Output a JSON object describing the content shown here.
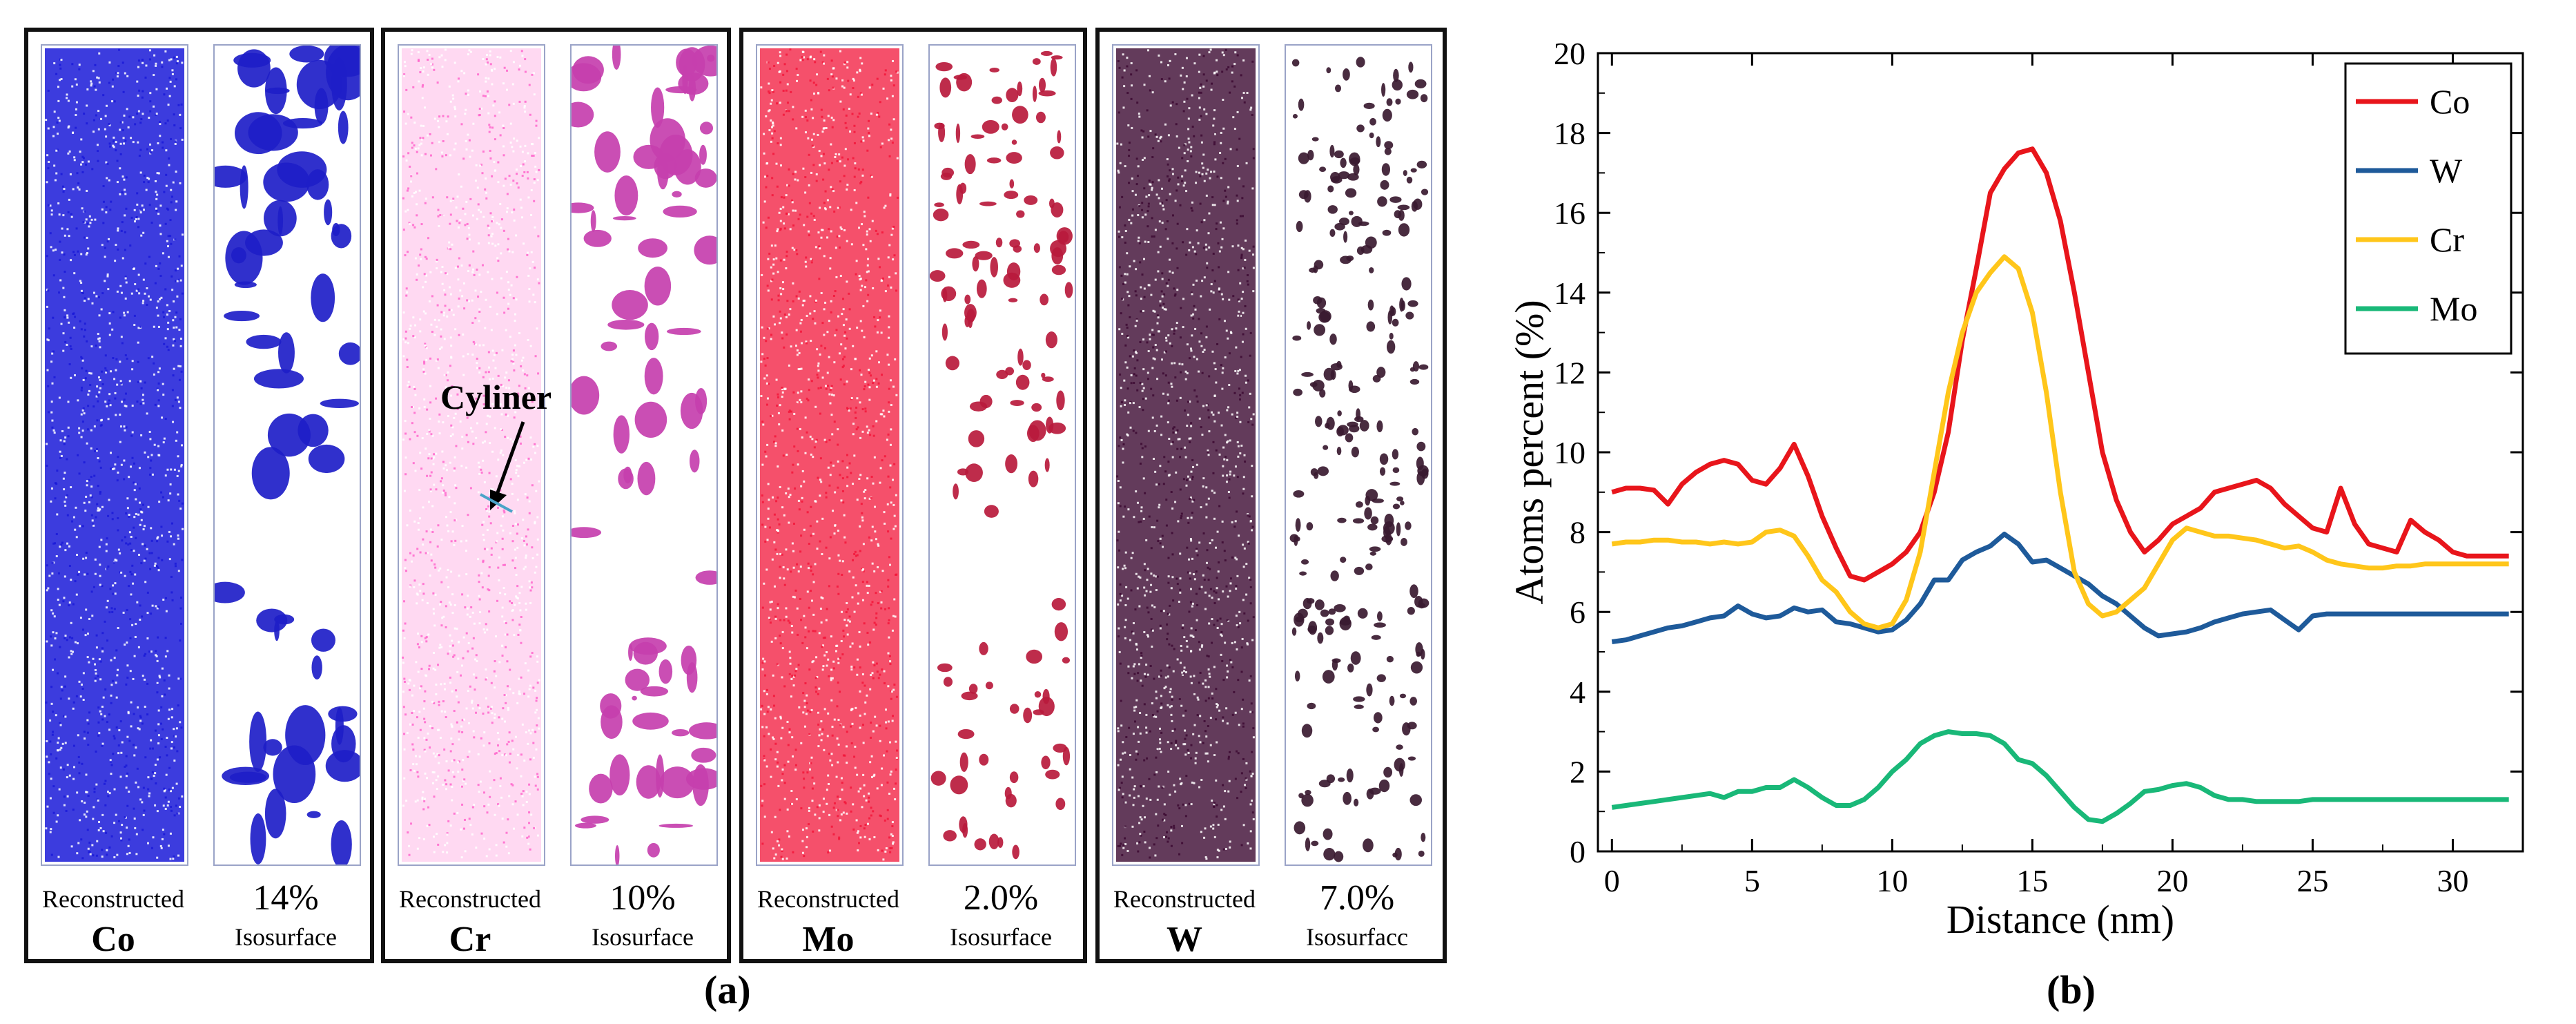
{
  "panel_a": {
    "label": "(a)",
    "panels": [
      {
        "element": "Co",
        "reconstructed_label": "Reconstructed",
        "iso_value": "14%",
        "iso_label": "Isosurface",
        "color": "#1a1ad8",
        "iso_color": "#1e1ec8"
      },
      {
        "element": "Cr",
        "reconstructed_label": "Reconstructed",
        "iso_value": "10%",
        "iso_label": "Isosurface",
        "color": "#ff66cc",
        "iso_color": "#c63fae"
      },
      {
        "element": "Mo",
        "reconstructed_label": "Reconstructed",
        "iso_value": "2.0%",
        "iso_label": "Isosurface",
        "color": "#f2163a",
        "iso_color": "#b81a3c"
      },
      {
        "element": "W",
        "reconstructed_label": "Reconstructed",
        "iso_value": "7.0%",
        "iso_label": "Isosurfacc",
        "color": "#3c0a32",
        "iso_color": "#3a1a30"
      }
    ],
    "annotation": "Cyliner"
  },
  "chart_data": {
    "type": "line",
    "label": "(b)",
    "xlabel": "Distance (nm)",
    "ylabel": "Atoms percent (%)",
    "xlim": [
      -0.5,
      32.5
    ],
    "ylim": [
      0,
      20
    ],
    "xticks": [
      0,
      5,
      10,
      15,
      20,
      25,
      30
    ],
    "yticks": [
      0,
      2,
      4,
      6,
      8,
      10,
      12,
      14,
      16,
      18,
      20
    ],
    "x": [
      0,
      0.5,
      1,
      1.5,
      2,
      2.5,
      3,
      3.5,
      4,
      4.5,
      5,
      5.5,
      6,
      6.5,
      7,
      7.5,
      8,
      8.5,
      9,
      9.5,
      10,
      10.5,
      11,
      11.5,
      12,
      12.5,
      13,
      13.5,
      14,
      14.5,
      15,
      15.5,
      16,
      16.5,
      17,
      17.5,
      18,
      18.5,
      19,
      19.5,
      20,
      20.5,
      21,
      21.5,
      22,
      22.5,
      23,
      23.5,
      24,
      24.5,
      25,
      25.5,
      26,
      26.5,
      27,
      27.5,
      28,
      28.5,
      29,
      29.5,
      30,
      30.5,
      31,
      31.5,
      32
    ],
    "legend": "top-right",
    "series": [
      {
        "name": "Co",
        "color": "#e8151b",
        "values": [
          9.0,
          9.1,
          9.1,
          9.05,
          8.7,
          9.2,
          9.5,
          9.7,
          9.8,
          9.7,
          9.3,
          9.2,
          9.6,
          10.2,
          9.4,
          8.4,
          7.6,
          6.9,
          6.8,
          7.0,
          7.2,
          7.5,
          8.0,
          9.0,
          10.5,
          12.8,
          14.6,
          16.5,
          17.1,
          17.5,
          17.6,
          17.0,
          15.8,
          14.0,
          12.0,
          10.0,
          8.8,
          8.0,
          7.5,
          7.8,
          8.2,
          8.4,
          8.6,
          9.0,
          9.1,
          9.2,
          9.3,
          9.1,
          8.7,
          8.4,
          8.1,
          8.0,
          9.1,
          8.2,
          7.7,
          7.6,
          7.5,
          8.3,
          8.0,
          7.8,
          7.5,
          7.4,
          7.4,
          7.4,
          7.4
        ]
      },
      {
        "name": "W",
        "color": "#1e5a9a",
        "values": [
          5.25,
          5.3,
          5.4,
          5.5,
          5.6,
          5.65,
          5.75,
          5.85,
          5.9,
          6.15,
          5.95,
          5.85,
          5.9,
          6.1,
          6.0,
          6.05,
          5.75,
          5.7,
          5.6,
          5.5,
          5.55,
          5.8,
          6.2,
          6.8,
          6.8,
          7.3,
          7.5,
          7.65,
          7.95,
          7.7,
          7.25,
          7.3,
          7.1,
          6.9,
          6.7,
          6.4,
          6.2,
          5.9,
          5.6,
          5.4,
          5.45,
          5.5,
          5.6,
          5.75,
          5.85,
          5.95,
          6.0,
          6.05,
          5.8,
          5.55,
          5.9,
          5.95,
          5.95,
          5.95,
          5.95,
          5.95,
          5.95,
          5.95,
          5.95,
          5.95,
          5.95,
          5.95,
          5.95,
          5.95,
          5.95
        ]
      },
      {
        "name": "Cr",
        "color": "#ffc61a",
        "values": [
          7.7,
          7.75,
          7.75,
          7.8,
          7.8,
          7.75,
          7.75,
          7.7,
          7.75,
          7.7,
          7.75,
          8.0,
          8.05,
          7.9,
          7.4,
          6.8,
          6.5,
          6.0,
          5.7,
          5.6,
          5.7,
          6.3,
          7.5,
          9.5,
          11.5,
          13.0,
          14.0,
          14.5,
          14.9,
          14.6,
          13.5,
          11.5,
          9.0,
          7.0,
          6.2,
          5.9,
          6.0,
          6.3,
          6.6,
          7.2,
          7.8,
          8.1,
          8.0,
          7.9,
          7.9,
          7.85,
          7.8,
          7.7,
          7.6,
          7.65,
          7.5,
          7.3,
          7.2,
          7.15,
          7.1,
          7.1,
          7.15,
          7.15,
          7.2,
          7.2,
          7.2,
          7.2,
          7.2,
          7.2,
          7.2
        ]
      },
      {
        "name": "Mo",
        "color": "#19b878",
        "values": [
          1.1,
          1.15,
          1.2,
          1.25,
          1.3,
          1.35,
          1.4,
          1.45,
          1.35,
          1.5,
          1.5,
          1.6,
          1.6,
          1.8,
          1.6,
          1.35,
          1.15,
          1.15,
          1.3,
          1.6,
          2.0,
          2.3,
          2.7,
          2.9,
          3.0,
          2.95,
          2.95,
          2.9,
          2.7,
          2.3,
          2.2,
          1.9,
          1.5,
          1.1,
          0.8,
          0.75,
          0.95,
          1.2,
          1.5,
          1.55,
          1.65,
          1.7,
          1.6,
          1.4,
          1.3,
          1.3,
          1.25,
          1.25,
          1.25,
          1.25,
          1.3,
          1.3,
          1.3,
          1.3,
          1.3,
          1.3,
          1.3,
          1.3,
          1.3,
          1.3,
          1.3,
          1.3,
          1.3,
          1.3,
          1.3
        ]
      }
    ]
  }
}
